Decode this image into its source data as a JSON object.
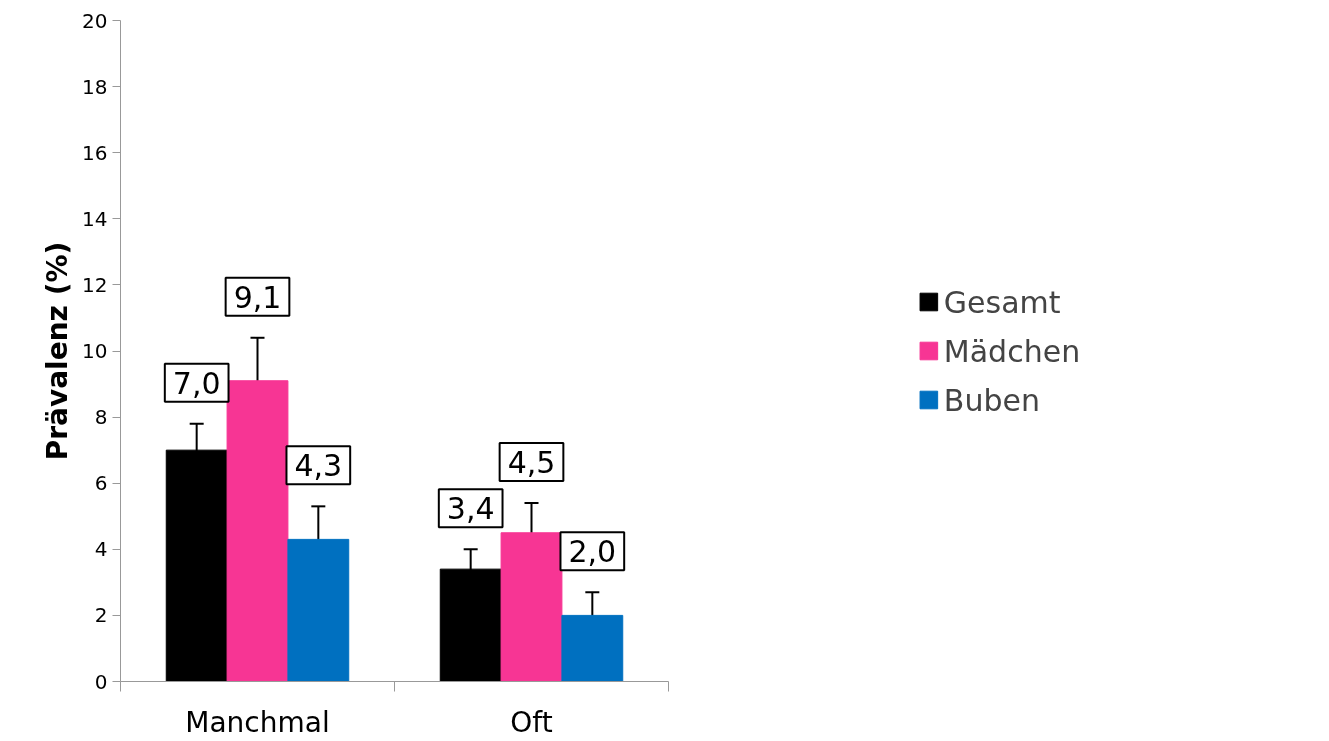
{
  "chart_data": {
    "type": "bar",
    "ylabel": "Prävalenz (%)",
    "categories": [
      "Manchmal",
      "Oft"
    ],
    "series": [
      {
        "name": "Gesamt",
        "color": "#000000",
        "values": [
          7.0,
          3.4
        ],
        "errors": [
          0.8,
          0.6
        ],
        "value_labels": [
          "7,0",
          "3,4"
        ]
      },
      {
        "name": "Mädchen",
        "color": "#f73594",
        "values": [
          9.1,
          4.5
        ],
        "errors": [
          1.3,
          0.9
        ],
        "value_labels": [
          "9,1",
          "4,5"
        ]
      },
      {
        "name": "Buben",
        "color": "#0070c0",
        "values": [
          4.3,
          2.0
        ],
        "errors": [
          1.0,
          0.7
        ],
        "value_labels": [
          "4,3",
          "2,0"
        ]
      }
    ],
    "ylim": [
      0,
      20
    ],
    "yticks": [
      0,
      2,
      4,
      6,
      8,
      10,
      12,
      14,
      16,
      18,
      20
    ],
    "grid": false,
    "legend": "right"
  }
}
